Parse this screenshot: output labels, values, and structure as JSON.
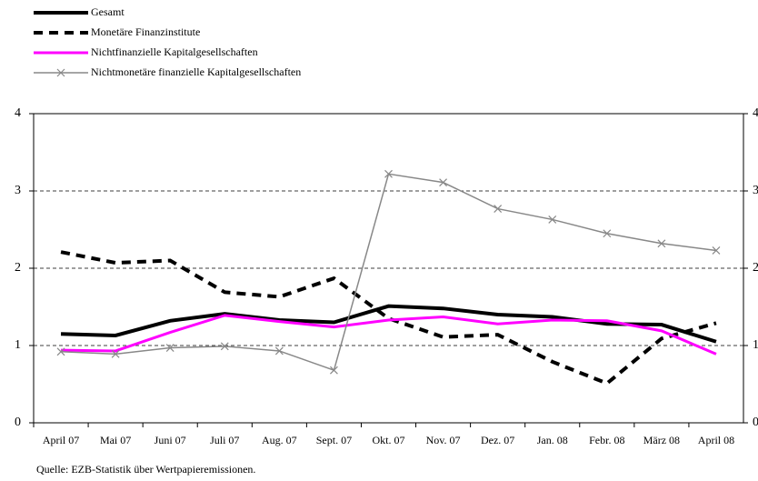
{
  "chart_data": {
    "type": "line",
    "categories": [
      "April 07",
      "Mai 07",
      "Juni 07",
      "Juli 07",
      "Aug. 07",
      "Sept. 07",
      "Okt. 07",
      "Nov. 07",
      "Dez. 07",
      "Jan. 08",
      "Febr. 08",
      "März 08",
      "April 08"
    ],
    "series": [
      {
        "name": "Gesamt",
        "color": "#000000",
        "width": 4,
        "dash": false,
        "marker": "none",
        "values": [
          1.15,
          1.13,
          1.32,
          1.41,
          1.33,
          1.3,
          1.51,
          1.48,
          1.4,
          1.37,
          1.28,
          1.27,
          1.05
        ]
      },
      {
        "name": "Monetäre Finanzinstitute",
        "color": "#000000",
        "width": 4,
        "dash": true,
        "marker": "none",
        "values": [
          2.21,
          2.07,
          2.1,
          1.69,
          1.63,
          1.87,
          1.35,
          1.11,
          1.14,
          0.79,
          0.51,
          1.09,
          1.29
        ]
      },
      {
        "name": "Nichtfinanzielle Kapitalgesellschaften",
        "color": "#ff00ff",
        "width": 3,
        "dash": false,
        "marker": "none",
        "values": [
          0.94,
          0.93,
          1.17,
          1.39,
          1.31,
          1.24,
          1.33,
          1.37,
          1.28,
          1.33,
          1.32,
          1.19,
          0.89
        ]
      },
      {
        "name": "Nichtmonetäre finanzielle Kapitalgesellschaften",
        "color": "#888888",
        "width": 1.5,
        "dash": false,
        "marker": "x",
        "values": [
          0.92,
          0.89,
          0.97,
          0.99,
          0.93,
          0.68,
          3.22,
          3.11,
          2.77,
          2.63,
          2.45,
          2.32,
          2.23
        ]
      }
    ],
    "ylim": [
      0,
      4
    ],
    "yticks": [
      0,
      1,
      2,
      3,
      4
    ],
    "y2lim": [
      0,
      4
    ],
    "y2ticks": [
      0,
      1,
      2,
      3,
      4
    ],
    "grid": true,
    "source": "Quelle: EZB-Statistik über Wertpapieremissionen."
  }
}
